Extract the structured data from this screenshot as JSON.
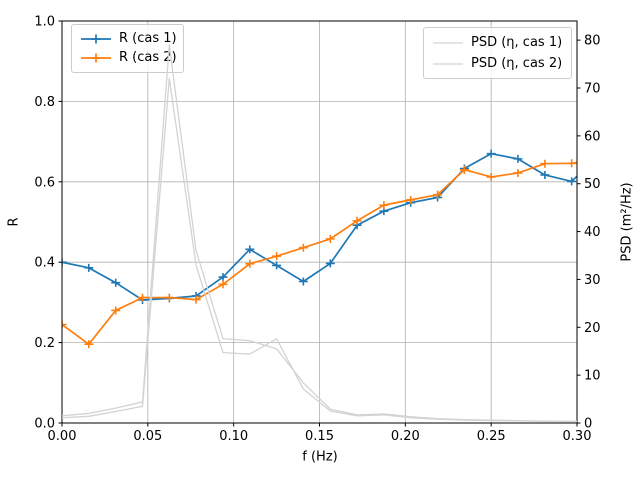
{
  "chart_data": {
    "type": "line",
    "title": "",
    "xlabel": "f (Hz)",
    "ylabel_left": "R",
    "ylabel_right": "PSD (m²/Hz)",
    "xlim": [
      0.0,
      0.3
    ],
    "ylim_left": [
      0.0,
      1.0
    ],
    "ylim_right": [
      0,
      84
    ],
    "grid": true,
    "x_tick_values": [
      0.0,
      0.05,
      0.1,
      0.15,
      0.2,
      0.25,
      0.3
    ],
    "x_tick_labels": [
      "0.00",
      "0.05",
      "0.10",
      "0.15",
      "0.20",
      "0.25",
      "0.30"
    ],
    "y_tick_values_left": [
      0.0,
      0.2,
      0.4,
      0.6,
      0.8,
      1.0
    ],
    "y_tick_labels_left": [
      "0.0",
      "0.2",
      "0.4",
      "0.6",
      "0.8",
      "1.0"
    ],
    "y_tick_values_right": [
      0,
      10,
      20,
      30,
      40,
      50,
      60,
      70,
      80
    ],
    "y_tick_labels_right": [
      "0",
      "10",
      "20",
      "30",
      "40",
      "50",
      "60",
      "70",
      "80"
    ],
    "f": [
      0.0,
      0.0156,
      0.0313,
      0.0469,
      0.0625,
      0.0781,
      0.0938,
      0.1094,
      0.125,
      0.1406,
      0.1563,
      0.1719,
      0.1875,
      0.2031,
      0.2188,
      0.2344,
      0.25,
      0.2656,
      0.2813,
      0.2969,
      0.3
    ],
    "series": [
      {
        "name": "R (cas 1)",
        "axis": "left",
        "color": "#1f77b4",
        "marker": "plus",
        "values": [
          0.4,
          0.386,
          0.349,
          0.306,
          0.31,
          0.316,
          0.363,
          0.432,
          0.392,
          0.352,
          0.397,
          0.492,
          0.527,
          0.548,
          0.561,
          0.633,
          0.67,
          0.657,
          0.617,
          0.601,
          0.614
        ]
      },
      {
        "name": "R (cas 2)",
        "axis": "left",
        "color": "#ff7f0e",
        "marker": "plus",
        "values": [
          0.245,
          0.196,
          0.28,
          0.312,
          0.312,
          0.307,
          0.345,
          0.396,
          0.415,
          0.436,
          0.458,
          0.503,
          0.542,
          0.555,
          0.568,
          0.63,
          0.612,
          0.622,
          0.645,
          0.646,
          0.648
        ]
      },
      {
        "name": "PSD (η, cas 1)",
        "axis": "right",
        "color": "#d3d3d3",
        "marker": "none",
        "values": [
          1.5,
          2.0,
          3.1,
          4.4,
          79.0,
          36.0,
          17.6,
          17.2,
          15.5,
          8.4,
          2.9,
          1.7,
          1.9,
          1.3,
          0.9,
          0.7,
          0.6,
          0.5,
          0.4,
          0.35,
          0.35
        ]
      },
      {
        "name": "PSD (η, cas 2)",
        "axis": "right",
        "color": "#d3d3d3",
        "marker": "none",
        "values": [
          1.1,
          1.4,
          2.4,
          3.5,
          72.0,
          33.0,
          14.7,
          14.4,
          17.6,
          7.1,
          2.5,
          1.5,
          1.7,
          1.1,
          0.8,
          0.6,
          0.5,
          0.45,
          0.35,
          0.3,
          0.3
        ]
      }
    ],
    "legend_left_entries": [
      0,
      1
    ],
    "legend_right_entries": [
      2,
      3
    ],
    "colors": {
      "grid": "#b0b0b0",
      "spine": "#000000",
      "tick_text": "#000000",
      "psd_line": "#d3d3d3",
      "cas1_blue": "#1f77b4",
      "cas2_orange": "#ff7f0e"
    }
  }
}
